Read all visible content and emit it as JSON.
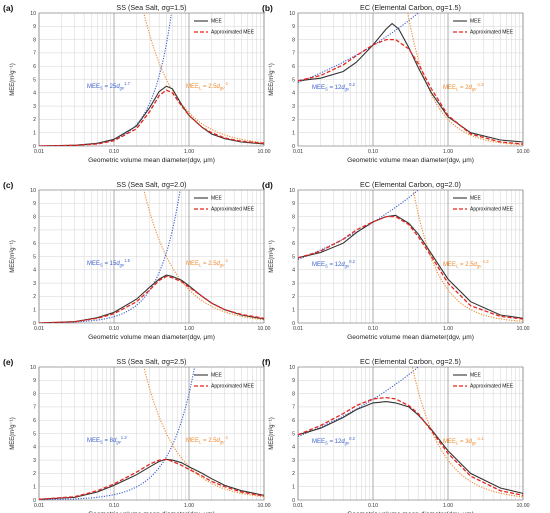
{
  "panels": [
    {
      "label": "(a)",
      "title": "SS (Sea Salt, σg=1.5)",
      "series": [
        {
          "name": "MEE",
          "values": [
            [
              0.01,
              0.0
            ],
            [
              0.03,
              0.05
            ],
            [
              0.06,
              0.2
            ],
            [
              0.1,
              0.5
            ],
            [
              0.2,
              1.5
            ],
            [
              0.3,
              2.9
            ],
            [
              0.4,
              4.1
            ],
            [
              0.5,
              4.5
            ],
            [
              0.6,
              4.3
            ],
            [
              0.8,
              3.1
            ],
            [
              1.0,
              2.3
            ],
            [
              1.5,
              1.4
            ],
            [
              2.0,
              0.9
            ],
            [
              3.0,
              0.55
            ],
            [
              5.0,
              0.3
            ],
            [
              10.0,
              0.15
            ]
          ]
        },
        {
          "name": "Approximated MEE",
          "values": [
            [
              0.01,
              0.0
            ],
            [
              0.03,
              0.05
            ],
            [
              0.06,
              0.15
            ],
            [
              0.1,
              0.4
            ],
            [
              0.2,
              1.3
            ],
            [
              0.3,
              2.6
            ],
            [
              0.4,
              3.8
            ],
            [
              0.5,
              4.2
            ],
            [
              0.6,
              4.0
            ],
            [
              0.8,
              3.0
            ],
            [
              1.0,
              2.3
            ],
            [
              1.5,
              1.4
            ],
            [
              2.0,
              1.0
            ],
            [
              3.0,
              0.6
            ],
            [
              5.0,
              0.35
            ],
            [
              10.0,
              0.2
            ]
          ]
        }
      ],
      "equations": [
        {
          "label": "MEE",
          "sub": "S",
          "coef": "= 25",
          "base": "d",
          "bsub": "gv",
          "exp": "1.7"
        },
        {
          "label": "MEE",
          "sub": "L",
          "coef": "= 2.5",
          "base": "d",
          "bsub": "gv",
          "exp": "-1"
        }
      ]
    },
    {
      "label": "(b)",
      "title": "EC (Elemental Carbon, σg=1.5)",
      "series": [
        {
          "name": "MEE",
          "values": [
            [
              0.01,
              4.9
            ],
            [
              0.02,
              5.1
            ],
            [
              0.04,
              5.6
            ],
            [
              0.06,
              6.3
            ],
            [
              0.1,
              7.6
            ],
            [
              0.15,
              8.8
            ],
            [
              0.18,
              9.2
            ],
            [
              0.22,
              8.8
            ],
            [
              0.3,
              7.4
            ],
            [
              0.4,
              5.9
            ],
            [
              0.6,
              4.0
            ],
            [
              1.0,
              2.2
            ],
            [
              2.0,
              1.0
            ],
            [
              5.0,
              0.45
            ],
            [
              10.0,
              0.3
            ]
          ]
        },
        {
          "name": "Approximated MEE",
          "values": [
            [
              0.01,
              4.9
            ],
            [
              0.02,
              5.3
            ],
            [
              0.04,
              6.1
            ],
            [
              0.06,
              6.8
            ],
            [
              0.1,
              7.6
            ],
            [
              0.15,
              8.0
            ],
            [
              0.2,
              8.0
            ],
            [
              0.3,
              7.3
            ],
            [
              0.4,
              6.2
            ],
            [
              0.6,
              4.3
            ],
            [
              1.0,
              2.3
            ],
            [
              2.0,
              0.9
            ],
            [
              5.0,
              0.3
            ],
            [
              10.0,
              0.15
            ]
          ]
        }
      ],
      "equations": [
        {
          "label": "MEE",
          "sub": "S",
          "coef": "= 12",
          "base": "d",
          "bsub": "gv",
          "exp": "0.2"
        },
        {
          "label": "MEE",
          "sub": "L",
          "coef": "= 2",
          "base": "d",
          "bsub": "gv",
          "exp": "-1.3"
        }
      ]
    },
    {
      "label": "(c)",
      "title": "SS (Sea Salt, σg=2.0)",
      "series": [
        {
          "name": "MEE",
          "values": [
            [
              0.01,
              0.0
            ],
            [
              0.03,
              0.1
            ],
            [
              0.06,
              0.4
            ],
            [
              0.1,
              0.8
            ],
            [
              0.2,
              1.8
            ],
            [
              0.3,
              2.7
            ],
            [
              0.4,
              3.3
            ],
            [
              0.5,
              3.6
            ],
            [
              0.6,
              3.5
            ],
            [
              0.8,
              3.2
            ],
            [
              1.0,
              2.8
            ],
            [
              1.5,
              2.0
            ],
            [
              2.0,
              1.5
            ],
            [
              3.0,
              1.0
            ],
            [
              5.0,
              0.6
            ],
            [
              10.0,
              0.3
            ]
          ]
        },
        {
          "name": "Approximated MEE",
          "values": [
            [
              0.01,
              0.0
            ],
            [
              0.03,
              0.1
            ],
            [
              0.06,
              0.35
            ],
            [
              0.1,
              0.7
            ],
            [
              0.2,
              1.6
            ],
            [
              0.3,
              2.5
            ],
            [
              0.4,
              3.2
            ],
            [
              0.5,
              3.5
            ],
            [
              0.6,
              3.4
            ],
            [
              0.8,
              3.1
            ],
            [
              1.0,
              2.7
            ],
            [
              1.5,
              2.0
            ],
            [
              2.0,
              1.5
            ],
            [
              3.0,
              1.0
            ],
            [
              5.0,
              0.65
            ],
            [
              10.0,
              0.35
            ]
          ]
        }
      ],
      "equations": [
        {
          "label": "MEE",
          "sub": "S",
          "coef": "= 15",
          "base": "d",
          "bsub": "gv",
          "exp": "1.5"
        },
        {
          "label": "MEE",
          "sub": "L",
          "coef": "= 2.5",
          "base": "d",
          "bsub": "gv",
          "exp": "-1"
        }
      ]
    },
    {
      "label": "(d)",
      "title": "EC (Elemental Carbon, σg=2.0)",
      "series": [
        {
          "name": "MEE",
          "values": [
            [
              0.01,
              4.9
            ],
            [
              0.02,
              5.3
            ],
            [
              0.04,
              6.0
            ],
            [
              0.06,
              6.8
            ],
            [
              0.1,
              7.6
            ],
            [
              0.15,
              8.0
            ],
            [
              0.2,
              8.1
            ],
            [
              0.3,
              7.5
            ],
            [
              0.4,
              6.7
            ],
            [
              0.6,
              5.2
            ],
            [
              1.0,
              3.3
            ],
            [
              2.0,
              1.6
            ],
            [
              5.0,
              0.6
            ],
            [
              10.0,
              0.35
            ]
          ]
        },
        {
          "name": "Approximated MEE",
          "values": [
            [
              0.01,
              4.9
            ],
            [
              0.02,
              5.4
            ],
            [
              0.04,
              6.3
            ],
            [
              0.06,
              7.0
            ],
            [
              0.1,
              7.6
            ],
            [
              0.15,
              8.0
            ],
            [
              0.2,
              8.0
            ],
            [
              0.3,
              7.4
            ],
            [
              0.4,
              6.5
            ],
            [
              0.6,
              5.0
            ],
            [
              1.0,
              3.0
            ],
            [
              2.0,
              1.3
            ],
            [
              5.0,
              0.5
            ],
            [
              10.0,
              0.3
            ]
          ]
        }
      ],
      "equations": [
        {
          "label": "MEE",
          "sub": "S",
          "coef": "= 12",
          "base": "d",
          "bsub": "gv",
          "exp": "0.2"
        },
        {
          "label": "MEE",
          "sub": "L",
          "coef": "= 2.5",
          "base": "d",
          "bsub": "gv",
          "exp": "-1.3"
        }
      ]
    },
    {
      "label": "(e)",
      "title": "SS (Sea Salt, σg=2.5)",
      "series": [
        {
          "name": "MEE",
          "values": [
            [
              0.01,
              0.05
            ],
            [
              0.03,
              0.2
            ],
            [
              0.06,
              0.6
            ],
            [
              0.1,
              1.1
            ],
            [
              0.2,
              1.9
            ],
            [
              0.3,
              2.5
            ],
            [
              0.4,
              2.9
            ],
            [
              0.5,
              3.05
            ],
            [
              0.6,
              3.0
            ],
            [
              0.8,
              2.8
            ],
            [
              1.0,
              2.5
            ],
            [
              1.5,
              2.0
            ],
            [
              2.0,
              1.6
            ],
            [
              3.0,
              1.1
            ],
            [
              5.0,
              0.7
            ],
            [
              10.0,
              0.35
            ]
          ]
        },
        {
          "name": "Approximated MEE",
          "values": [
            [
              0.01,
              0.05
            ],
            [
              0.03,
              0.25
            ],
            [
              0.06,
              0.7
            ],
            [
              0.1,
              1.2
            ],
            [
              0.2,
              2.1
            ],
            [
              0.3,
              2.7
            ],
            [
              0.4,
              3.0
            ],
            [
              0.5,
              3.05
            ],
            [
              0.6,
              2.9
            ],
            [
              0.8,
              2.6
            ],
            [
              1.0,
              2.3
            ],
            [
              1.5,
              1.8
            ],
            [
              2.0,
              1.4
            ],
            [
              3.0,
              1.0
            ],
            [
              5.0,
              0.6
            ],
            [
              10.0,
              0.3
            ]
          ]
        }
      ],
      "equations": [
        {
          "label": "MEE",
          "sub": "S",
          "coef": "= 8",
          "base": "d",
          "bsub": "gv",
          "exp": "1.3"
        },
        {
          "label": "MEE",
          "sub": "L",
          "coef": "= 2.5",
          "base": "d",
          "bsub": "gv",
          "exp": "-1"
        }
      ]
    },
    {
      "label": "(f)",
      "title": "EC (Elemental Carbon, σg=2.5)",
      "series": [
        {
          "name": "MEE",
          "values": [
            [
              0.01,
              4.9
            ],
            [
              0.02,
              5.4
            ],
            [
              0.04,
              6.2
            ],
            [
              0.06,
              6.8
            ],
            [
              0.1,
              7.3
            ],
            [
              0.15,
              7.4
            ],
            [
              0.2,
              7.3
            ],
            [
              0.3,
              7.0
            ],
            [
              0.4,
              6.4
            ],
            [
              0.6,
              5.3
            ],
            [
              1.0,
              3.7
            ],
            [
              2.0,
              2.0
            ],
            [
              5.0,
              0.9
            ],
            [
              10.0,
              0.5
            ]
          ]
        },
        {
          "name": "Approximated MEE",
          "values": [
            [
              0.01,
              4.9
            ],
            [
              0.02,
              5.6
            ],
            [
              0.04,
              6.5
            ],
            [
              0.06,
              7.1
            ],
            [
              0.1,
              7.6
            ],
            [
              0.15,
              7.7
            ],
            [
              0.2,
              7.6
            ],
            [
              0.3,
              7.1
            ],
            [
              0.4,
              6.5
            ],
            [
              0.6,
              5.2
            ],
            [
              1.0,
              3.5
            ],
            [
              2.0,
              1.8
            ],
            [
              5.0,
              0.7
            ],
            [
              10.0,
              0.35
            ]
          ]
        }
      ],
      "equations": [
        {
          "label": "MEE",
          "sub": "S",
          "coef": "= 12",
          "base": "d",
          "bsub": "gv",
          "exp": "0.2"
        },
        {
          "label": "MEE",
          "sub": "L",
          "coef": "= 3",
          "base": "d",
          "bsub": "gv",
          "exp": "-1.1"
        }
      ]
    }
  ],
  "axes": {
    "xlabel": "Geometric volume mean diameter(dgv, µm)",
    "ylabel": "MEE(m²g⁻¹)",
    "xticks": [
      "0.01",
      "0.10",
      "1.00",
      "10.00"
    ],
    "yticks": [
      "0",
      "1",
      "2",
      "3",
      "4",
      "5",
      "6",
      "7",
      "8",
      "9",
      "10"
    ],
    "xlim": [
      0.01,
      10
    ],
    "ylim": [
      0,
      10
    ],
    "xscale": "log"
  },
  "legend": [
    "MEE",
    "Approximated MEE"
  ],
  "colors": {
    "mee": "#333333",
    "approx": "#e8251e",
    "mee_s": "#3a5fcd",
    "mee_l": "#ef8a2e",
    "grid": "#d4d4d4"
  }
}
